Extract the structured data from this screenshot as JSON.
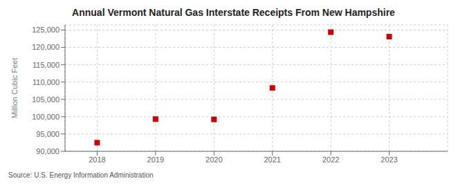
{
  "chart_data": {
    "type": "scatter",
    "title": "Annual Vermont Natural Gas Interstate Receipts From New Hampshire",
    "ylabel": "Million Cubic Feet",
    "annotations": [
      "Source: U.S. Energy Information Administration"
    ],
    "x": [
      2018,
      2019,
      2020,
      2021,
      2022,
      2023
    ],
    "values": [
      92500,
      99300,
      99200,
      108300,
      124400,
      123100
    ],
    "color": "#cc0000",
    "marker": "square",
    "xlim": [
      2017.45,
      2024.0
    ],
    "xticks": [
      2018,
      2019,
      2020,
      2021,
      2022,
      2023
    ],
    "ylim": [
      90000,
      126500
    ],
    "yticks": [
      {
        "value": 90000,
        "label": "90,000"
      },
      {
        "value": 95000,
        "label": "95,000"
      },
      {
        "value": 100000,
        "label": "100,000"
      },
      {
        "value": 105000,
        "label": "105,000"
      },
      {
        "value": 110000,
        "label": "110,000"
      },
      {
        "value": 115000,
        "label": "115,000"
      },
      {
        "value": 120000,
        "label": "120,000"
      },
      {
        "value": 125000,
        "label": "125,000"
      }
    ],
    "grid": true
  }
}
